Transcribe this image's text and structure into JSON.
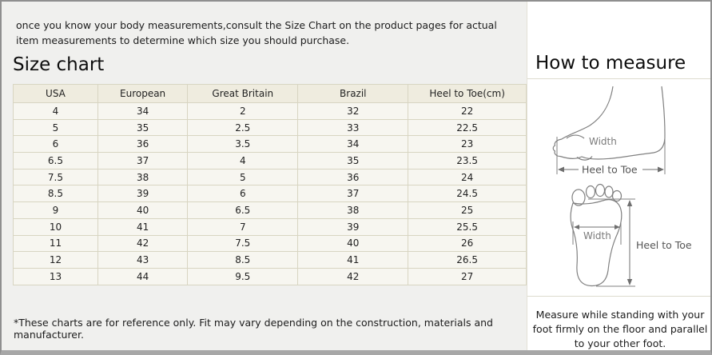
{
  "intro": {
    "text": "once you know your body measurements,consult the Size Chart on the product pages for actual item measurements to determine which size you should purchase."
  },
  "size_chart": {
    "title": "Size chart",
    "columns": [
      "USA",
      "European",
      "Great Britain",
      "Brazil",
      "Heel to Toe(cm)"
    ],
    "rows": [
      [
        "4",
        "34",
        "2",
        "32",
        "22"
      ],
      [
        "5",
        "35",
        "2.5",
        "33",
        "22.5"
      ],
      [
        "6",
        "36",
        "3.5",
        "34",
        "23"
      ],
      [
        "6.5",
        "37",
        "4",
        "35",
        "23.5"
      ],
      [
        "7.5",
        "38",
        "5",
        "36",
        "24"
      ],
      [
        "8.5",
        "39",
        "6",
        "37",
        "24.5"
      ],
      [
        "9",
        "40",
        "6.5",
        "38",
        "25"
      ],
      [
        "10",
        "41",
        "7",
        "39",
        "25.5"
      ],
      [
        "11",
        "42",
        "7.5",
        "40",
        "26"
      ],
      [
        "12",
        "43",
        "8.5",
        "41",
        "26.5"
      ],
      [
        "13",
        "44",
        "9.5",
        "42",
        "27"
      ]
    ],
    "footnote": "*These charts are for reference only. Fit may vary depending on the construction, materials and manufacturer."
  },
  "how_to_measure": {
    "title": "How to measure",
    "side_view": {
      "width_label": "Width",
      "heel_to_toe_label": "Heel to Toe"
    },
    "top_view": {
      "width_label": "Width",
      "heel_to_toe_label": "Heel to Toe"
    },
    "note": "Measure while standing with your foot firmly on the floor and parallel to your other foot."
  },
  "colors": {
    "left_background": "#f0f0ee",
    "right_background": "#ffffff",
    "table_cell": "#f7f6f0",
    "table_header": "#efecdf",
    "table_border": "#d8d5c2",
    "panel_border": "#8f8f8f",
    "diagram_stroke": "#808080"
  }
}
